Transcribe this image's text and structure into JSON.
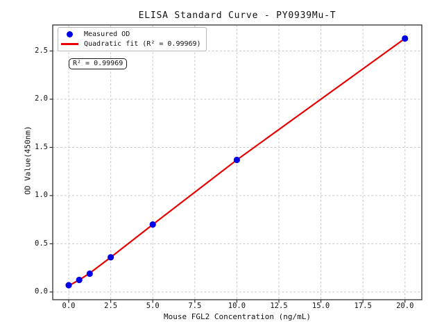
{
  "chart_data": {
    "type": "scatter",
    "title": "ELISA Standard Curve - PY0939Mu-T",
    "xlabel": "Mouse FGL2 Concentration (ng/mL)",
    "ylabel": "OD Value(450nm)",
    "xlim": [
      -0.95,
      21.0
    ],
    "ylim": [
      -0.08,
      2.77
    ],
    "xticks": [
      0.0,
      2.5,
      5.0,
      7.5,
      10.0,
      12.5,
      15.0,
      17.5,
      20.0
    ],
    "yticks": [
      0.0,
      0.5,
      1.0,
      1.5,
      2.0,
      2.5
    ],
    "grid": true,
    "grid_color": "#c9c9c9",
    "spine_color": "#2e2e2e",
    "r_squared": 0.99969,
    "series": [
      {
        "name": "Measured OD",
        "type": "scatter",
        "color": "#0000e6",
        "x": [
          0,
          0.625,
          1.25,
          2.5,
          5,
          10,
          20
        ],
        "y": [
          0.07,
          0.125,
          0.19,
          0.36,
          0.7,
          1.37,
          2.63
        ]
      },
      {
        "name": "Quadratic fit (R² = 0.99969)",
        "type": "line",
        "color": "#e60000",
        "x": [
          0,
          0.625,
          1.25,
          2.5,
          5,
          10,
          20
        ],
        "y": [
          0.065,
          0.125,
          0.195,
          0.36,
          0.7,
          1.37,
          2.63
        ]
      }
    ],
    "legend_position": "upper left"
  },
  "legend": {
    "items": [
      {
        "label": "Measured OD",
        "marker": "dot",
        "color": "#0000e6"
      },
      {
        "label": "Quadratic fit (R² = 0.99969)",
        "marker": "line",
        "color": "#e60000"
      }
    ]
  },
  "annotation": {
    "r_squared_label": "R² = 0.99969"
  }
}
